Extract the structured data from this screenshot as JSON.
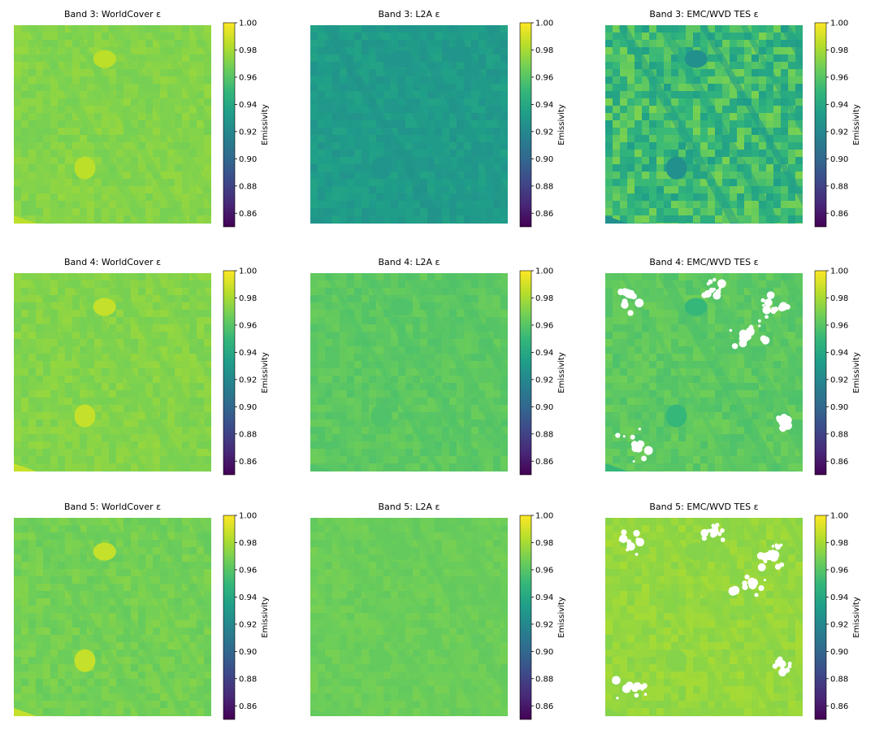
{
  "colormap": {
    "name": "viridis",
    "stops": [
      "#440154",
      "#482878",
      "#3e4989",
      "#31688e",
      "#26828e",
      "#1f9e89",
      "#35b779",
      "#6ece58",
      "#b5de2b",
      "#fde725"
    ]
  },
  "mask_color": "#ffffff",
  "chart_data": [
    {
      "type": "heatmap",
      "title": "Band 3: WorldCover ε",
      "colorbar_label": "Emissivity",
      "zlim": [
        0.85,
        1.0
      ],
      "colorbar_ticks": [
        "0.86",
        "0.88",
        "0.90",
        "0.92",
        "0.94",
        "0.96",
        "0.98",
        "1.00"
      ],
      "base_value": 0.972,
      "water_value": 0.985,
      "texture": 0.004,
      "masked": false
    },
    {
      "type": "heatmap",
      "title": "Band 3: L2A ε",
      "colorbar_label": "Emissivity",
      "zlim": [
        0.85,
        1.0
      ],
      "colorbar_ticks": [
        "0.86",
        "0.88",
        "0.90",
        "0.92",
        "0.94",
        "0.96",
        "0.98",
        "1.00"
      ],
      "base_value": 0.932,
      "water_value": 0.928,
      "texture": 0.005,
      "masked": false
    },
    {
      "type": "heatmap",
      "title": "Band 3: EMC/WVD TES ε",
      "colorbar_label": "Emissivity",
      "zlim": [
        0.85,
        1.0
      ],
      "colorbar_ticks": [
        "0.86",
        "0.88",
        "0.90",
        "0.92",
        "0.94",
        "0.96",
        "0.98",
        "1.00"
      ],
      "base_value": 0.952,
      "water_value": 0.925,
      "texture": 0.018,
      "masked": false
    },
    {
      "type": "heatmap",
      "title": "Band 4: WorldCover ε",
      "colorbar_label": "Emissivity",
      "zlim": [
        0.85,
        1.0
      ],
      "colorbar_ticks": [
        "0.86",
        "0.88",
        "0.90",
        "0.92",
        "0.94",
        "0.96",
        "0.98",
        "1.00"
      ],
      "base_value": 0.972,
      "water_value": 0.987,
      "texture": 0.004,
      "masked": false
    },
    {
      "type": "heatmap",
      "title": "Band 4: L2A ε",
      "colorbar_label": "Emissivity",
      "zlim": [
        0.85,
        1.0
      ],
      "colorbar_ticks": [
        "0.86",
        "0.88",
        "0.90",
        "0.92",
        "0.94",
        "0.96",
        "0.98",
        "1.00"
      ],
      "base_value": 0.962,
      "water_value": 0.958,
      "texture": 0.004,
      "masked": false
    },
    {
      "type": "heatmap",
      "title": "Band 4: EMC/WVD TES ε",
      "colorbar_label": "Emissivity",
      "zlim": [
        0.85,
        1.0
      ],
      "colorbar_ticks": [
        "0.86",
        "0.88",
        "0.90",
        "0.92",
        "0.94",
        "0.96",
        "0.98",
        "1.00"
      ],
      "base_value": 0.962,
      "water_value": 0.95,
      "texture": 0.005,
      "masked": true
    },
    {
      "type": "heatmap",
      "title": "Band 5: WorldCover ε",
      "colorbar_label": "Emissivity",
      "zlim": [
        0.85,
        1.0
      ],
      "colorbar_ticks": [
        "0.86",
        "0.88",
        "0.90",
        "0.92",
        "0.94",
        "0.96",
        "0.98",
        "1.00"
      ],
      "base_value": 0.968,
      "water_value": 0.987,
      "texture": 0.004,
      "masked": false
    },
    {
      "type": "heatmap",
      "title": "Band 5: L2A ε",
      "colorbar_label": "Emissivity",
      "zlim": [
        0.85,
        1.0
      ],
      "colorbar_ticks": [
        "0.86",
        "0.88",
        "0.90",
        "0.92",
        "0.94",
        "0.96",
        "0.98",
        "1.00"
      ],
      "base_value": 0.966,
      "water_value": 0.964,
      "texture": 0.003,
      "masked": false
    },
    {
      "type": "heatmap",
      "title": "Band 5: EMC/WVD TES ε",
      "colorbar_label": "Emissivity",
      "zlim": [
        0.85,
        1.0
      ],
      "colorbar_ticks": [
        "0.86",
        "0.88",
        "0.90",
        "0.92",
        "0.94",
        "0.96",
        "0.98",
        "1.00"
      ],
      "base_value": 0.976,
      "water_value": 0.972,
      "texture": 0.004,
      "masked": true
    }
  ]
}
